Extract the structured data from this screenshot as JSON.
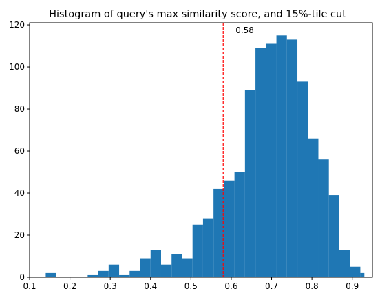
{
  "chart_data": {
    "type": "bar",
    "title": "Histogram of query's max similarity score, and 15%-tile cut",
    "xlabel": "",
    "ylabel": "",
    "xlim": [
      0.1,
      0.95
    ],
    "ylim": [
      0,
      121
    ],
    "xticks": [
      0.1,
      0.2,
      0.3,
      0.4,
      0.5,
      0.6,
      0.7,
      0.8,
      0.9
    ],
    "xtick_labels": [
      "0.1",
      "0.2",
      "0.3",
      "0.4",
      "0.5",
      "0.6",
      "0.7",
      "0.8",
      "0.9"
    ],
    "yticks": [
      0,
      20,
      40,
      60,
      80,
      100,
      120
    ],
    "ytick_labels": [
      "0",
      "20",
      "40",
      "60",
      "80",
      "100",
      "120"
    ],
    "grid": false,
    "bar_color": "#1f77b4",
    "bins": [
      {
        "x0": 0.14,
        "x1": 0.166,
        "count": 2
      },
      {
        "x0": 0.166,
        "x1": 0.192,
        "count": 0
      },
      {
        "x0": 0.192,
        "x1": 0.218,
        "count": 0
      },
      {
        "x0": 0.218,
        "x1": 0.244,
        "count": 0
      },
      {
        "x0": 0.244,
        "x1": 0.27,
        "count": 1
      },
      {
        "x0": 0.27,
        "x1": 0.296,
        "count": 3
      },
      {
        "x0": 0.296,
        "x1": 0.322,
        "count": 6
      },
      {
        "x0": 0.322,
        "x1": 0.348,
        "count": 1
      },
      {
        "x0": 0.348,
        "x1": 0.374,
        "count": 3
      },
      {
        "x0": 0.374,
        "x1": 0.4,
        "count": 9
      },
      {
        "x0": 0.4,
        "x1": 0.426,
        "count": 13
      },
      {
        "x0": 0.426,
        "x1": 0.452,
        "count": 6
      },
      {
        "x0": 0.452,
        "x1": 0.478,
        "count": 11
      },
      {
        "x0": 0.478,
        "x1": 0.504,
        "count": 9
      },
      {
        "x0": 0.504,
        "x1": 0.53,
        "count": 25
      },
      {
        "x0": 0.53,
        "x1": 0.556,
        "count": 28
      },
      {
        "x0": 0.556,
        "x1": 0.582,
        "count": 42
      },
      {
        "x0": 0.582,
        "x1": 0.608,
        "count": 46
      },
      {
        "x0": 0.608,
        "x1": 0.634,
        "count": 50
      },
      {
        "x0": 0.634,
        "x1": 0.66,
        "count": 89
      },
      {
        "x0": 0.66,
        "x1": 0.686,
        "count": 109
      },
      {
        "x0": 0.686,
        "x1": 0.712,
        "count": 111
      },
      {
        "x0": 0.712,
        "x1": 0.738,
        "count": 115
      },
      {
        "x0": 0.738,
        "x1": 0.764,
        "count": 113
      },
      {
        "x0": 0.764,
        "x1": 0.79,
        "count": 93
      },
      {
        "x0": 0.79,
        "x1": 0.816,
        "count": 66
      },
      {
        "x0": 0.816,
        "x1": 0.842,
        "count": 56
      },
      {
        "x0": 0.842,
        "x1": 0.868,
        "count": 39
      },
      {
        "x0": 0.868,
        "x1": 0.894,
        "count": 13
      },
      {
        "x0": 0.894,
        "x1": 0.92,
        "count": 5
      },
      {
        "x0": 0.92,
        "x1": 0.93,
        "count": 2
      }
    ],
    "cutoff": {
      "value": 0.58,
      "label": "0.58",
      "color": "#ff0000",
      "style": "dashed"
    }
  }
}
